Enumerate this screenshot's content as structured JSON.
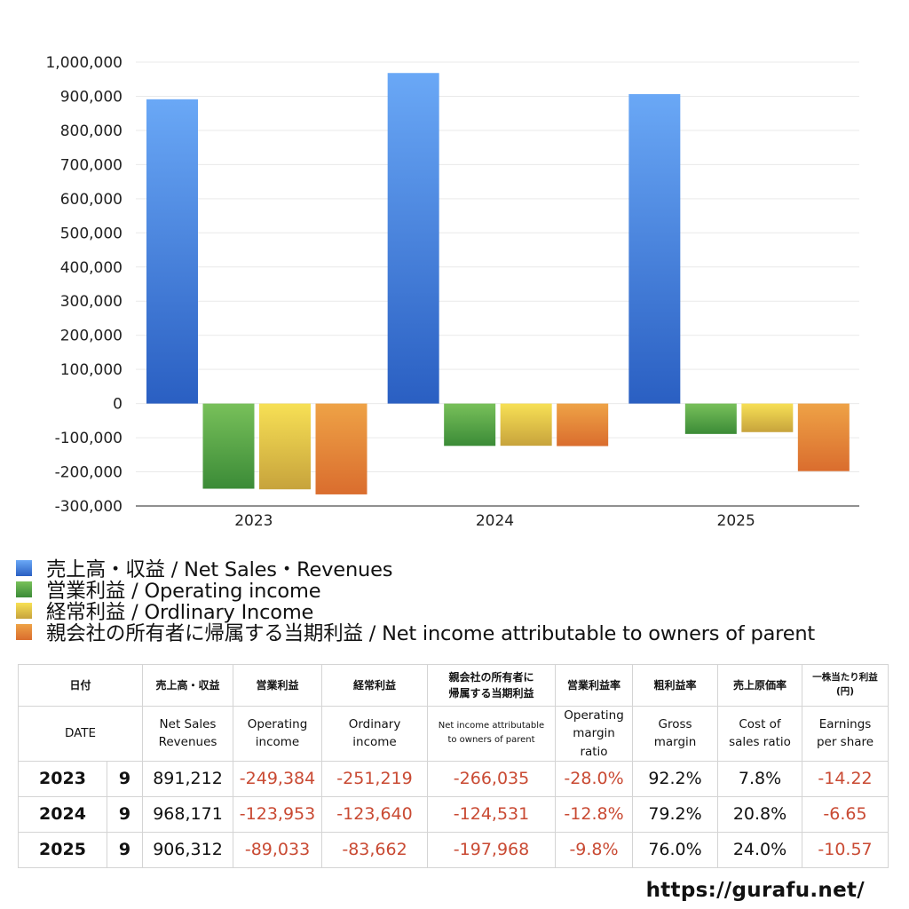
{
  "chart_data": {
    "type": "bar",
    "categories": [
      "2023",
      "2024",
      "2025"
    ],
    "ylim": [
      -300000,
      1000000
    ],
    "yticks": [
      1000000,
      900000,
      800000,
      700000,
      600000,
      500000,
      400000,
      300000,
      200000,
      100000,
      0,
      -100000,
      -200000,
      -300000
    ],
    "ytick_labels": [
      "1,000,000",
      "900,000",
      "800,000",
      "700,000",
      "600,000",
      "500,000",
      "400,000",
      "300,000",
      "200,000",
      "100,000",
      "0",
      "-100,000",
      "-200,000",
      "-300,000"
    ],
    "series": [
      {
        "name": "売上高・収益 / Net Sales・Revenues",
        "values": [
          891212,
          968171,
          906312
        ],
        "color_top": "#6aa8f6",
        "color_bottom": "#2a5fc2"
      },
      {
        "name": "営業利益 / Operating income",
        "values": [
          -249384,
          -123953,
          -89033
        ],
        "color_top": "#78c05a",
        "color_bottom": "#3b8b37"
      },
      {
        "name": "経常利益 / Ordlinary Income",
        "values": [
          -251219,
          -123640,
          -83662
        ],
        "color_top": "#f7e055",
        "color_bottom": "#c7a33c"
      },
      {
        "name": "親会社の所有者に帰属する当期利益 / Net income attributable to owners of parent",
        "values": [
          -266035,
          -124531,
          -197968
        ],
        "color_top": "#eea246",
        "color_bottom": "#da6d2e"
      }
    ]
  },
  "table": {
    "header_jp": {
      "date": "日付",
      "net_sales": "売上高・収益",
      "operating_income": "営業利益",
      "ordinary_income": "経常利益",
      "net_income_l1": "親会社の所有者に",
      "net_income_l2": "帰属する当期利益",
      "operating_margin": "営業利益率",
      "gross_margin": "粗利益率",
      "cost_ratio": "売上原価率",
      "eps_l1": "一株当たり利益",
      "eps_l2": "(円)"
    },
    "header_en": {
      "date": "DATE",
      "net_sales_l1": "Net Sales",
      "net_sales_l2": "Revenues",
      "operating_income_l1": "Operating",
      "operating_income_l2": "income",
      "ordinary_income_l1": "Ordinary",
      "ordinary_income_l2": "income",
      "net_income_l1": "Net income attributable",
      "net_income_l2": "to owners of parent",
      "operating_margin_l1": "Operating",
      "operating_margin_l2": "margin",
      "operating_margin_l3": "ratio",
      "gross_margin_l1": "Gross",
      "gross_margin_l2": "margin",
      "cost_ratio_l1": "Cost of",
      "cost_ratio_l2": "sales ratio",
      "eps_l1": "Earnings",
      "eps_l2": "per share"
    },
    "rows": [
      {
        "year": "2023",
        "month": "9",
        "net_sales": "891,212",
        "operating_income": "-249,384",
        "ordinary_income": "-251,219",
        "net_income": "-266,035",
        "operating_margin": "-28.0%",
        "gross_margin": "92.2%",
        "cost_ratio": "7.8%",
        "eps": "-14.22"
      },
      {
        "year": "2024",
        "month": "9",
        "net_sales": "968,171",
        "operating_income": "-123,953",
        "ordinary_income": "-123,640",
        "net_income": "-124,531",
        "operating_margin": "-12.8%",
        "gross_margin": "79.2%",
        "cost_ratio": "20.8%",
        "eps": "-6.65"
      },
      {
        "year": "2025",
        "month": "9",
        "net_sales": "906,312",
        "operating_income": "-89,033",
        "ordinary_income": "-83,662",
        "net_income": "-197,968",
        "operating_margin": "-9.8%",
        "gross_margin": "76.0%",
        "cost_ratio": "24.0%",
        "eps": "-10.57"
      }
    ]
  },
  "source": "https://gurafu.net/"
}
